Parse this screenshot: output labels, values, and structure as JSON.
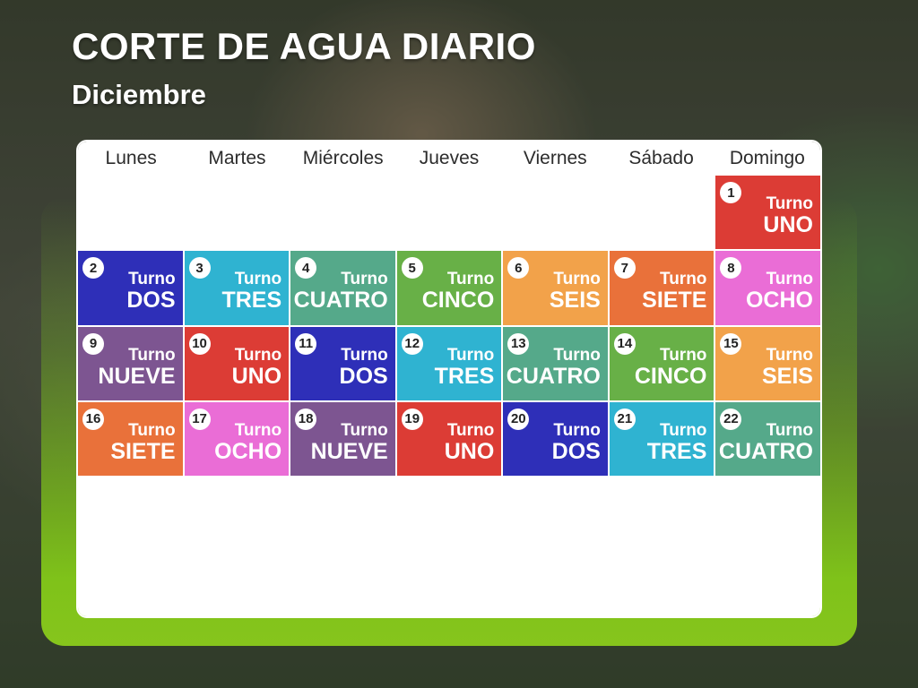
{
  "header": {
    "title": "CORTE DE AGUA DIARIO",
    "subtitle": "Diciembre"
  },
  "weekdays": [
    "Lunes",
    "Martes",
    "Miércoles",
    "Jueves",
    "Viernes",
    "Sábado",
    "Domingo"
  ],
  "turno_label": "Turno",
  "turno_colors": {
    "UNO": "#dc3c35",
    "DOS": "#2e2fb8",
    "TRES": "#2fb3d1",
    "CUATRO": "#55a98a",
    "CINCO": "#68b047",
    "SEIS": "#f2a24a",
    "SIETE": "#e9713a",
    "OCHO": "#ea6dd6",
    "NUEVE": "#7d5591"
  },
  "calendar": {
    "rows": [
      [
        null,
        null,
        null,
        null,
        null,
        null,
        {
          "day": "1",
          "turno": "UNO"
        }
      ],
      [
        {
          "day": "2",
          "turno": "DOS"
        },
        {
          "day": "3",
          "turno": "TRES"
        },
        {
          "day": "4",
          "turno": "CUATRO"
        },
        {
          "day": "5",
          "turno": "CINCO"
        },
        {
          "day": "6",
          "turno": "SEIS"
        },
        {
          "day": "7",
          "turno": "SIETE"
        },
        {
          "day": "8",
          "turno": "OCHO"
        }
      ],
      [
        {
          "day": "9",
          "turno": "NUEVE"
        },
        {
          "day": "10",
          "turno": "UNO"
        },
        {
          "day": "11",
          "turno": "DOS"
        },
        {
          "day": "12",
          "turno": "TRES"
        },
        {
          "day": "13",
          "turno": "CUATRO"
        },
        {
          "day": "14",
          "turno": "CINCO"
        },
        {
          "day": "15",
          "turno": "SEIS"
        }
      ],
      [
        {
          "day": "16",
          "turno": "SIETE"
        },
        {
          "day": "17",
          "turno": "OCHO"
        },
        {
          "day": "18",
          "turno": "NUEVE"
        },
        {
          "day": "19",
          "turno": "UNO"
        },
        {
          "day": "20",
          "turno": "DOS"
        },
        {
          "day": "21",
          "turno": "TRES"
        },
        {
          "day": "22",
          "turno": "CUATRO"
        }
      ]
    ]
  }
}
